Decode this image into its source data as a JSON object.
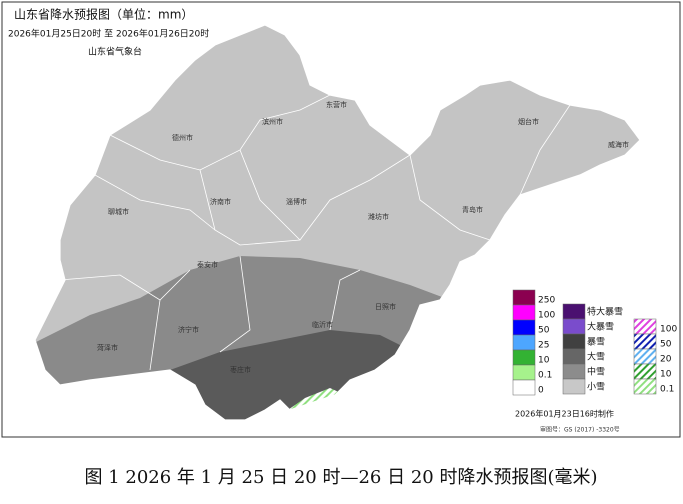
{
  "header": {
    "title": "山东省降水预报图（单位：mm）",
    "period": "2026年01月25日20时  至  2026年01月26日20时",
    "issuer": "山东省气象台"
  },
  "cities": [
    "德州市",
    "滨州市",
    "东营市",
    "烟台市",
    "威海市",
    "聊城市",
    "济南市",
    "淄博市",
    "潍坊市",
    "青岛市",
    "泰安市",
    "济宁市",
    "菏泽市",
    "临沂市",
    "日照市",
    "枣庄市"
  ],
  "legend": {
    "rain": [
      "250",
      "100",
      "50",
      "25",
      "10",
      "0.1",
      "0"
    ],
    "snow": [
      "特大暴雪",
      "大暴雪",
      "暴雪",
      "大雪",
      "中雪",
      "小雪"
    ],
    "sleet": [
      "100",
      "50",
      "20",
      "10",
      "0.1"
    ]
  },
  "footer": {
    "made": "2026年01月23日16时制作",
    "approval": "审图号：GS (2017) -3320号"
  },
  "caption": "图 1 2026 年 1 月 25 日 20 时—26 日 20 时降水预报图(毫米)"
}
